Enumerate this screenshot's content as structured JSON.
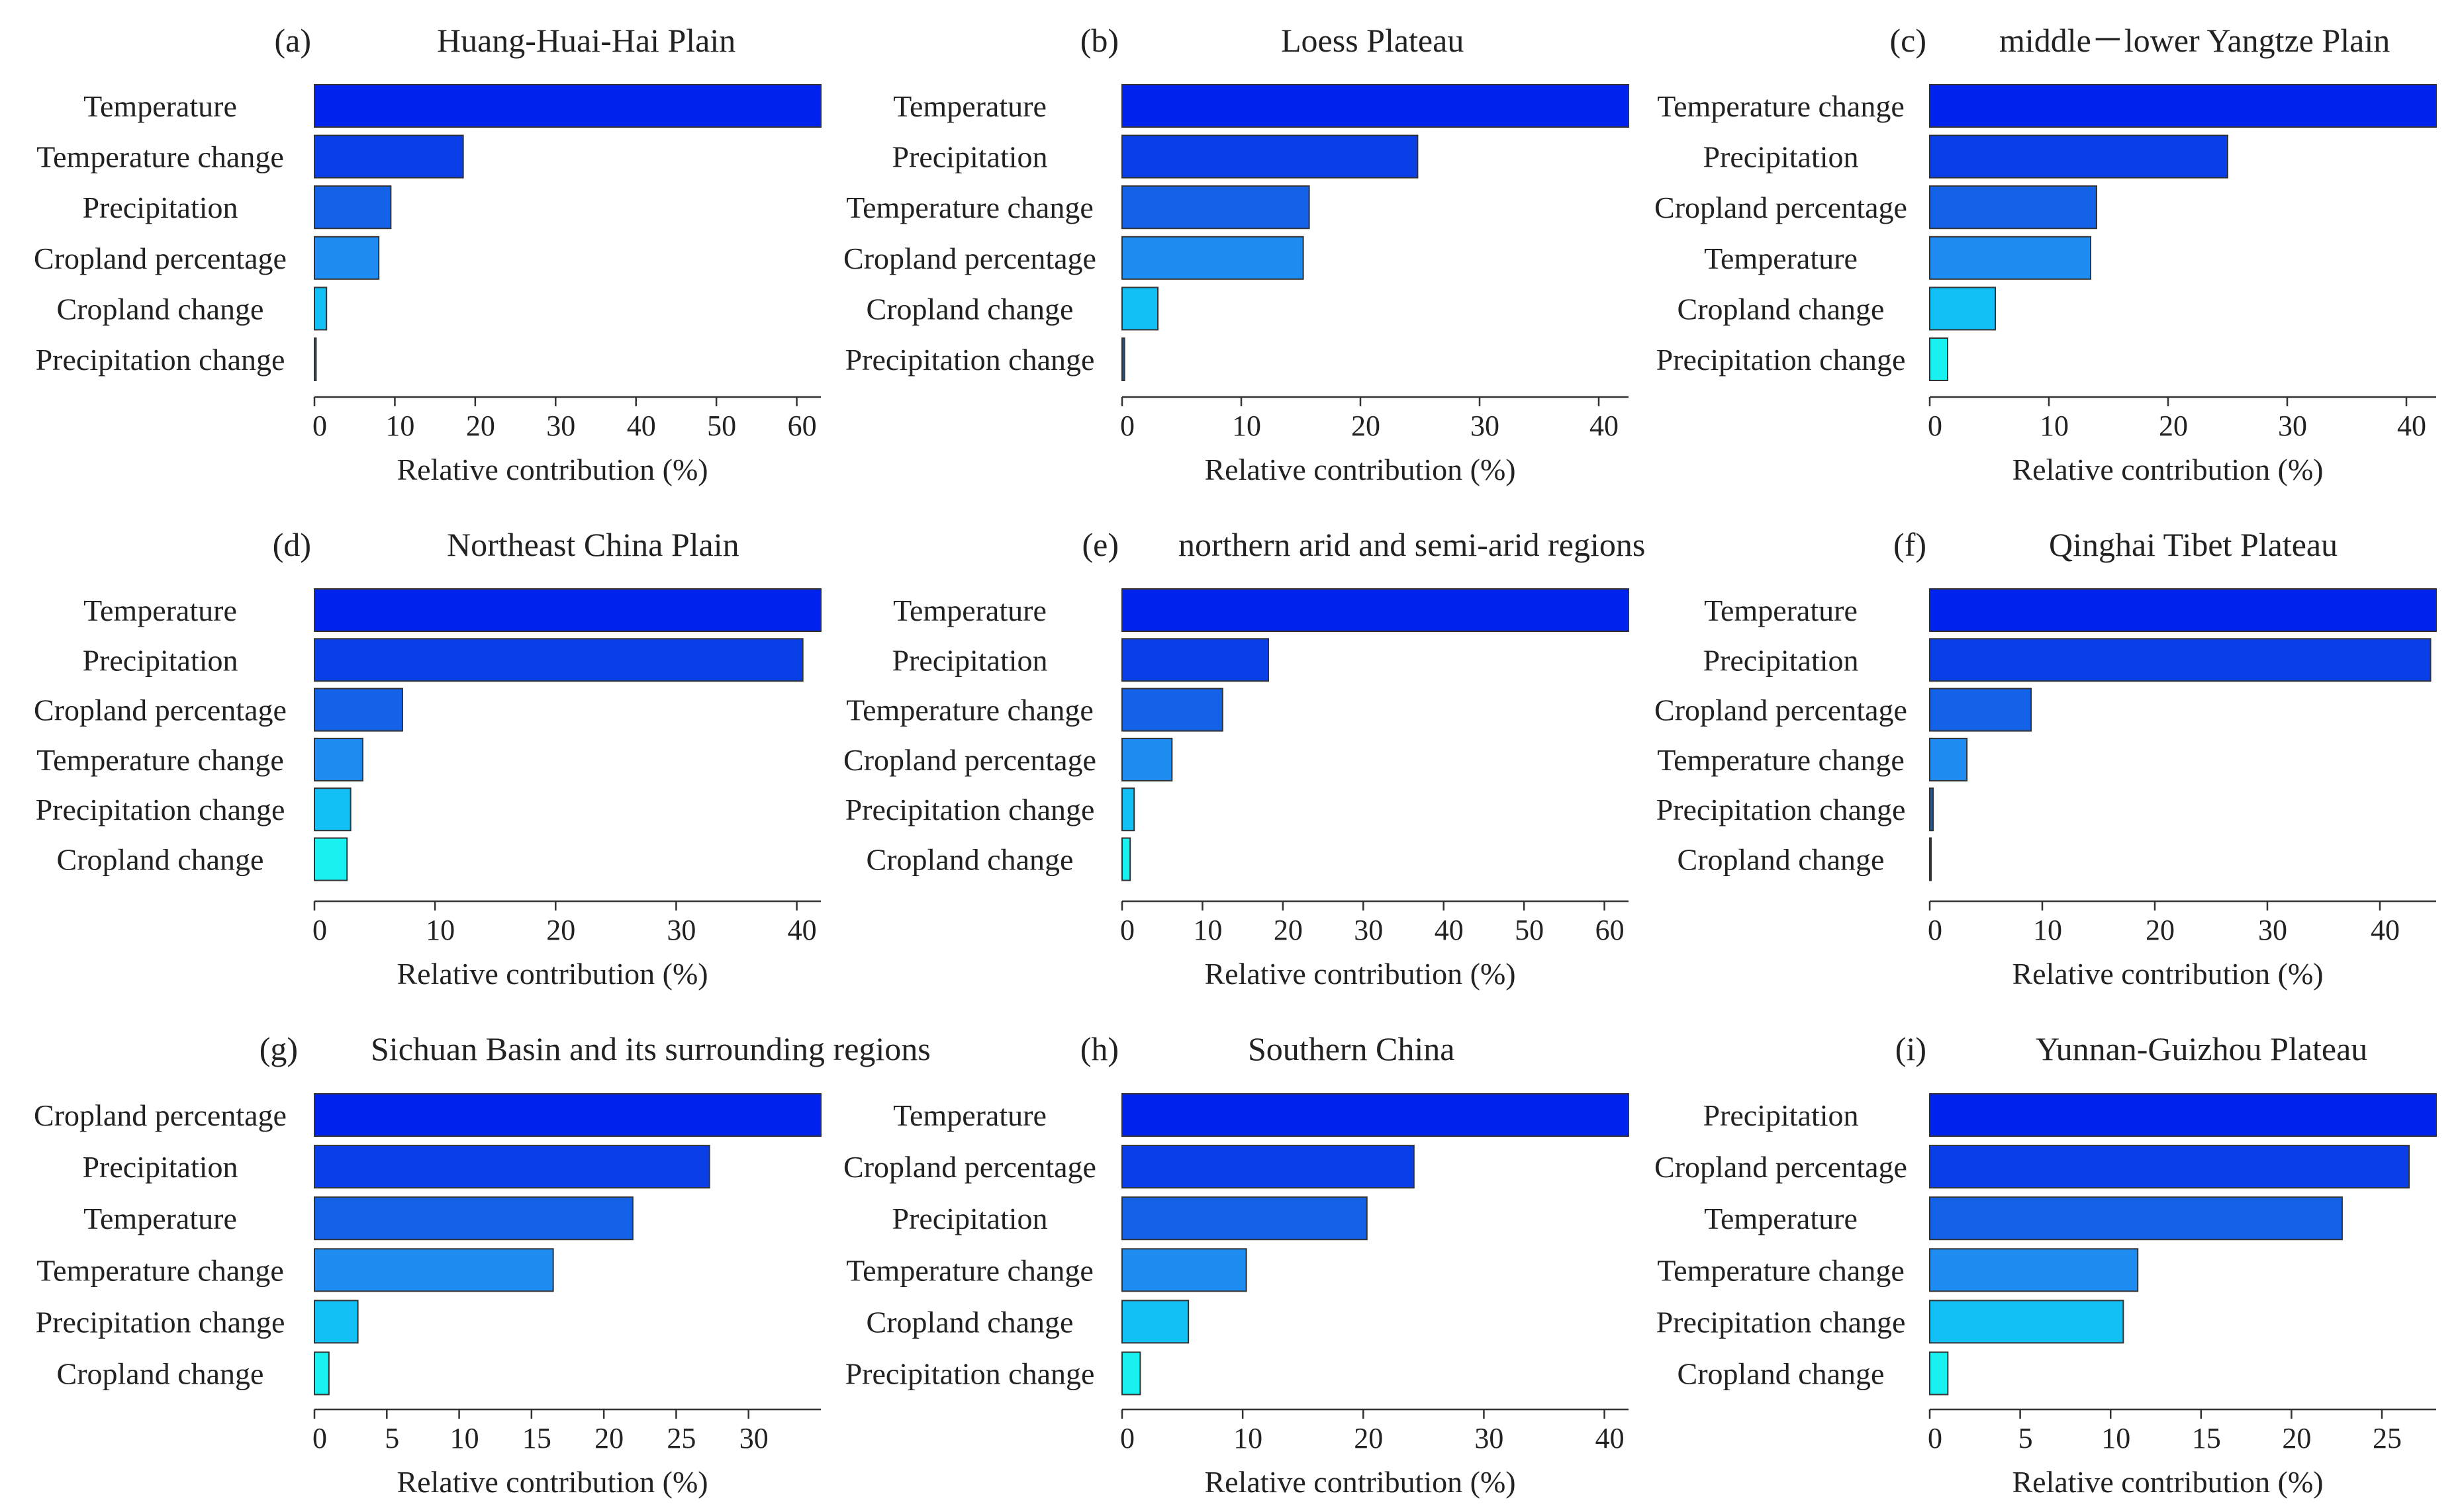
{
  "figure": {
    "background": "#ffffff",
    "bar_colors": [
      "#0022ee",
      "#0a3fe8",
      "#1462e8",
      "#1e8cf0",
      "#12c0f5",
      "#19f0f0"
    ],
    "zero_bar_color": "#2a5a8a"
  },
  "chart_data": [
    {
      "type": "bar",
      "orientation": "horizontal",
      "panel": "(a)",
      "title": "Huang-Huai-Hai Plain",
      "categories": [
        "Temperature",
        "Temperature change",
        "Precipitation",
        "Cropland percentage",
        "Cropland change",
        "Precipitation change"
      ],
      "values": [
        63,
        18.5,
        9.5,
        8,
        1.5,
        0.2
      ],
      "xlabel": "Relative contribution (%)",
      "xlim": [
        0,
        63
      ],
      "xticks": [
        0,
        10,
        20,
        30,
        40,
        50,
        60
      ]
    },
    {
      "type": "bar",
      "orientation": "horizontal",
      "panel": "(b)",
      "title": "Loess Plateau",
      "categories": [
        "Temperature",
        "Precipitation",
        "Temperature change",
        "Cropland percentage",
        "Cropland change",
        "Precipitation change"
      ],
      "values": [
        42.5,
        24.8,
        15.7,
        15.2,
        3,
        0.2
      ],
      "xlabel": "Relative contribution (%)",
      "xlim": [
        0,
        42.5
      ],
      "xticks": [
        0,
        10,
        20,
        30,
        40
      ]
    },
    {
      "type": "bar",
      "orientation": "horizontal",
      "panel": "(c)",
      "title": "middle－lower Yangtze Plain",
      "categories": [
        "Temperature change",
        "Precipitation",
        "Cropland percentage",
        "Temperature",
        "Cropland change",
        "Precipitation change"
      ],
      "values": [
        42.5,
        25,
        14,
        13.5,
        5.5,
        1.5
      ],
      "xlabel": "Relative contribution (%)",
      "xlim": [
        0,
        42.5
      ],
      "xticks": [
        0,
        10,
        20,
        30,
        40
      ]
    },
    {
      "type": "bar",
      "orientation": "horizontal",
      "panel": "(d)",
      "title": "Northeast China Plain",
      "categories": [
        "Temperature",
        "Precipitation",
        "Cropland percentage",
        "Temperature change",
        "Precipitation change",
        "Cropland change"
      ],
      "values": [
        42,
        40.5,
        7.3,
        4,
        3,
        2.7
      ],
      "xlabel": "Relative contribution (%)",
      "xlim": [
        0,
        42
      ],
      "xticks": [
        0,
        10,
        20,
        30,
        40
      ]
    },
    {
      "type": "bar",
      "orientation": "horizontal",
      "panel": "(e)",
      "title": "northern arid and semi-arid regions",
      "categories": [
        "Temperature",
        "Precipitation",
        "Temperature change",
        "Cropland percentage",
        "Precipitation change",
        "Cropland change"
      ],
      "values": [
        63,
        18.2,
        12.5,
        6.2,
        1.5,
        1
      ],
      "xlabel": "Relative contribution (%)",
      "xlim": [
        0,
        63
      ],
      "xticks": [
        0,
        10,
        20,
        30,
        40,
        50,
        60
      ]
    },
    {
      "type": "bar",
      "orientation": "horizontal",
      "panel": "(f)",
      "title": "Qinghai Tibet Plateau",
      "categories": [
        "Temperature",
        "Precipitation",
        "Cropland percentage",
        "Temperature change",
        "Precipitation change",
        "Cropland change"
      ],
      "values": [
        45,
        44.5,
        9,
        3.3,
        0.3,
        0.1
      ],
      "xlabel": "Relative contribution (%)",
      "xlim": [
        0,
        45
      ],
      "xticks": [
        0,
        10,
        20,
        30,
        40
      ]
    },
    {
      "type": "bar",
      "orientation": "horizontal",
      "panel": "(g)",
      "title": "Sichuan Basin and its surrounding regions",
      "categories": [
        "Cropland percentage",
        "Precipitation",
        "Temperature",
        "Temperature change",
        "Precipitation change",
        "Cropland change"
      ],
      "values": [
        35,
        27.3,
        22,
        16.5,
        3,
        1
      ],
      "xlabel": "Relative contribution (%)",
      "xlim": [
        0,
        35
      ],
      "xticks": [
        0,
        5,
        10,
        15,
        20,
        25,
        30
      ]
    },
    {
      "type": "bar",
      "orientation": "horizontal",
      "panel": "(h)",
      "title": "Southern China",
      "categories": [
        "Temperature",
        "Cropland percentage",
        "Precipitation",
        "Temperature change",
        "Cropland change",
        "Precipitation change"
      ],
      "values": [
        42,
        24.2,
        20.3,
        10.3,
        5.5,
        1.5
      ],
      "xlabel": "Relative contribution (%)",
      "xlim": [
        0,
        42
      ],
      "xticks": [
        0,
        10,
        20,
        30,
        40
      ]
    },
    {
      "type": "bar",
      "orientation": "horizontal",
      "panel": "(i)",
      "title": "Yunnan-Guizhou Plateau",
      "categories": [
        "Precipitation",
        "Cropland percentage",
        "Temperature",
        "Temperature change",
        "Precipitation change",
        "Cropland change"
      ],
      "values": [
        28,
        26.5,
        22.8,
        11.5,
        10.7,
        1
      ],
      "xlabel": "Relative contribution (%)",
      "xlim": [
        0,
        28
      ],
      "xticks": [
        0,
        5,
        10,
        15,
        20,
        25
      ]
    }
  ]
}
